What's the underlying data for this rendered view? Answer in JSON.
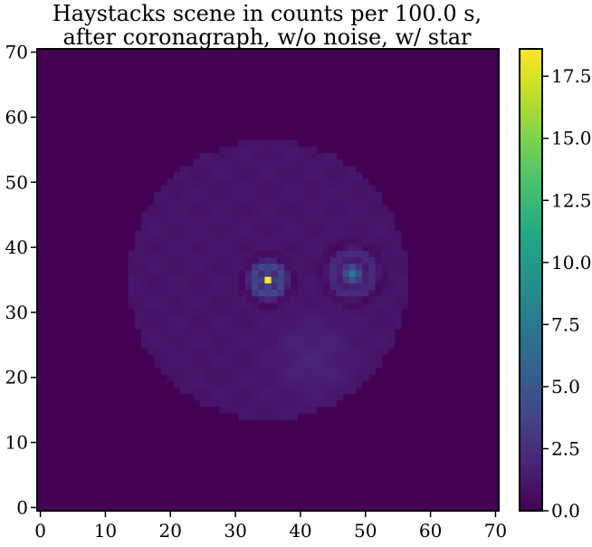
{
  "title_lines": [
    "Haystacks scene in counts per 100.0 s,",
    "after coronagraph, w/o noise, w/ star"
  ],
  "chart_data": {
    "type": "heatmap",
    "title": "Haystacks scene in counts per 100.0 s,\nafter coronagraph, w/o noise, w/ star",
    "xlim": [
      -0.5,
      70.5
    ],
    "ylim": [
      -0.5,
      70.5
    ],
    "x_ticks": [
      0,
      10,
      20,
      30,
      40,
      50,
      60,
      70
    ],
    "y_ticks": [
      0,
      10,
      20,
      30,
      40,
      50,
      60,
      70
    ],
    "grid_size": 71,
    "colormap": "viridis",
    "colorbar": {
      "range": [
        0.0,
        18.6
      ],
      "ticks": [
        0.0,
        2.5,
        5.0,
        7.5,
        10.0,
        12.5,
        15.0,
        17.5
      ],
      "tick_labels": [
        "0.0",
        "2.5",
        "5.0",
        "7.5",
        "10.0",
        "12.5",
        "15.0",
        "17.5"
      ]
    },
    "features": [
      {
        "name": "disk",
        "center": [
          35,
          35
        ],
        "radius": 21.5,
        "value": 1.2
      },
      {
        "name": "star-peak",
        "x": 35,
        "y": 35,
        "value": 18.5
      },
      {
        "name": "companion",
        "x": 48,
        "y": 36,
        "value": 6.5
      },
      {
        "name": "lower-glow",
        "x": 42,
        "y": 23,
        "value": 2.0
      }
    ]
  }
}
